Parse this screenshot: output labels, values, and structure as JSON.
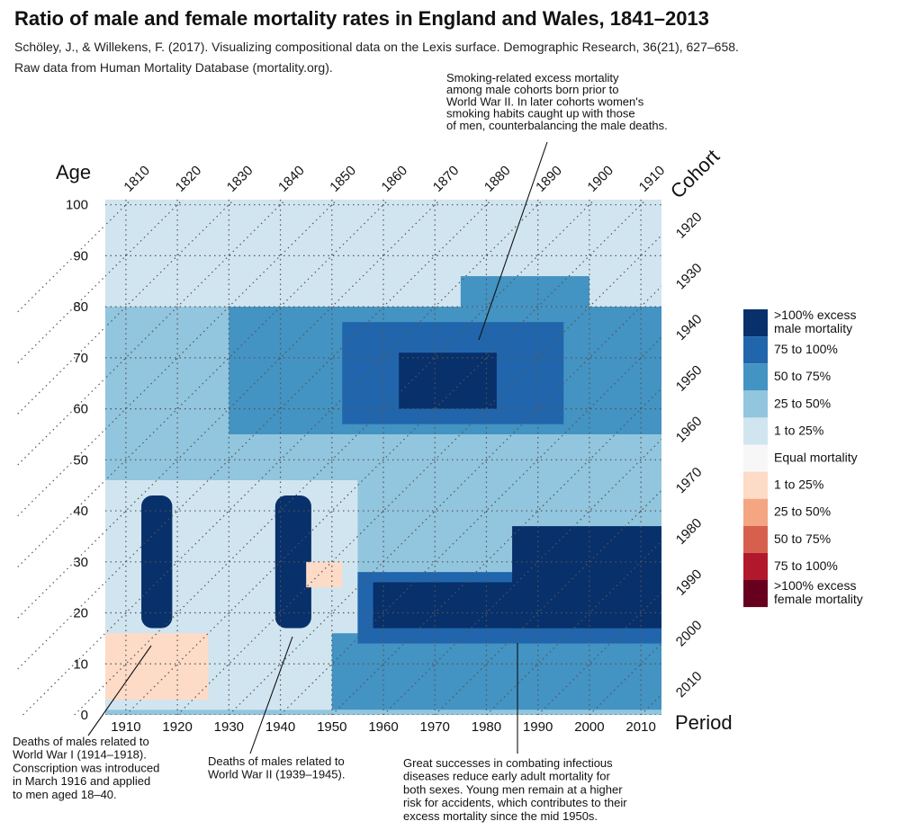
{
  "title": "Ratio of male and female mortality rates in England and Wales, 1841–2013",
  "subtitle_1": "Schöley, J., & Willekens, F. (2017). Visualizing compositional data on the Lexis surface. Demographic Research, 36(21), 627–658.",
  "subtitle_2": "Raw data from Human Mortality Database (mortality.org).",
  "chart_data": {
    "type": "heatmap",
    "xlabel": "Period",
    "ylabel": "Age",
    "diag_label": "Cohort",
    "xlim": [
      1906,
      2014
    ],
    "ylim": [
      0,
      101
    ],
    "x_ticks": [
      1910,
      1920,
      1930,
      1940,
      1950,
      1960,
      1970,
      1980,
      1990,
      2000,
      2010
    ],
    "y_ticks": [
      0,
      10,
      20,
      30,
      40,
      50,
      60,
      70,
      80,
      90,
      100
    ],
    "cohort_ticks": [
      1810,
      1820,
      1830,
      1840,
      1850,
      1860,
      1870,
      1880,
      1890,
      1900,
      1910,
      1920,
      1930,
      1940,
      1950,
      1960,
      1970,
      1980,
      1990,
      2000,
      2010
    ],
    "grid": "dotted lines for period, age and cohort",
    "legend_position": "right",
    "legend": [
      {
        "label": ">100% excess\nmale mortality",
        "color": "#08306b"
      },
      {
        "label": "75 to 100%",
        "color": "#2166ac"
      },
      {
        "label": "50 to 75%",
        "color": "#4393c3"
      },
      {
        "label": "25 to 50%",
        "color": "#92c5de"
      },
      {
        "label": "1 to 25%",
        "color": "#d1e5f0"
      },
      {
        "label": "Equal mortality",
        "color": "#f7f7f7"
      },
      {
        "label": "1 to 25%",
        "color": "#fddbc7"
      },
      {
        "label": "25 to 50%",
        "color": "#f4a582"
      },
      {
        "label": "50 to 75%",
        "color": "#d6604d"
      },
      {
        "label": "75 to 100%",
        "color": "#b2182b"
      },
      {
        "label": ">100% excess\nfemale mortality",
        "color": "#67001f"
      }
    ],
    "regions": [
      {
        "category": 4,
        "x": [
          1906,
          2014
        ],
        "y": [
          0,
          101
        ]
      },
      {
        "category": 3,
        "x": [
          1906,
          2014
        ],
        "y": [
          46,
          80
        ]
      },
      {
        "category": 3,
        "x": [
          1955,
          2014
        ],
        "y": [
          1,
          46
        ]
      },
      {
        "category": 2,
        "x": [
          1930,
          2014
        ],
        "y": [
          55,
          80
        ]
      },
      {
        "category": 2,
        "x": [
          1975,
          2000
        ],
        "y": [
          80,
          86
        ]
      },
      {
        "category": 2,
        "x": [
          1950,
          2014
        ],
        "y": [
          1,
          16
        ]
      },
      {
        "category": 1,
        "x": [
          1952,
          1995
        ],
        "y": [
          57,
          77
        ]
      },
      {
        "category": 1,
        "x": [
          1955,
          2014
        ],
        "y": [
          14,
          28
        ]
      },
      {
        "category": 0,
        "x": [
          1913,
          1919
        ],
        "y": [
          17,
          43
        ]
      },
      {
        "category": 0,
        "x": [
          1939,
          1946
        ],
        "y": [
          17,
          43
        ]
      },
      {
        "category": 0,
        "x": [
          1963,
          1982
        ],
        "y": [
          60,
          71
        ]
      },
      {
        "category": 0,
        "x": [
          1958,
          2014
        ],
        "y": [
          17,
          26
        ]
      },
      {
        "category": 0,
        "x": [
          1985,
          2014
        ],
        "y": [
          17,
          37
        ]
      },
      {
        "category": 6,
        "x": [
          1906,
          1926
        ],
        "y": [
          3,
          16
        ]
      },
      {
        "category": 6,
        "x": [
          1945,
          1952
        ],
        "y": [
          25,
          30
        ]
      }
    ]
  },
  "annotations": [
    {
      "lines": [
        "Smoking-related excess mortality",
        "among male cohorts born prior to",
        "World War II. In later cohorts women's",
        "smoking habits caught up with those",
        "of men, counterbalancing the male deaths."
      ]
    },
    {
      "lines": [
        "Deaths of males related to",
        "World War I (1914–1918).",
        "Conscription was introduced",
        "in March 1916 and applied",
        "to men aged 18–40."
      ]
    },
    {
      "lines": [
        "Deaths of males related to",
        "World War II (1939–1945)."
      ]
    },
    {
      "lines": [
        "Great successes in combating infectious",
        "diseases reduce early adult mortality for",
        "both sexes. Young men remain at a higher",
        "risk for accidents, which contributes to their",
        "excess mortality since the mid 1950s."
      ]
    }
  ]
}
